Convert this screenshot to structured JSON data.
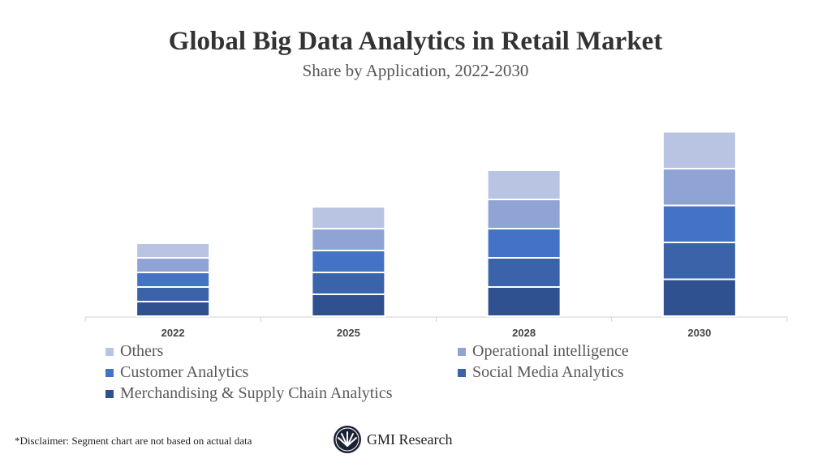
{
  "chart_data": {
    "type": "bar",
    "stacked": true,
    "title": "Global Big Data Analytics in Retail Market",
    "subtitle": "Share by Application, 2022-2030",
    "categories": [
      "2022",
      "2025",
      "2028",
      "2030"
    ],
    "series": [
      {
        "name": "Merchandising & Supply Chain Analytics",
        "color": "#2f5190",
        "values": [
          18,
          27,
          36,
          45.5
        ]
      },
      {
        "name": "Social Media Analytics",
        "color": "#3a63a9",
        "values": [
          18,
          27,
          36,
          45.5
        ]
      },
      {
        "name": "Customer Analytics",
        "color": "#4472c4",
        "values": [
          18,
          27,
          36,
          45.5
        ]
      },
      {
        "name": "Operational intelligence",
        "color": "#8fa4d4",
        "values": [
          18,
          27,
          36,
          45.5
        ]
      },
      {
        "name": "Others",
        "color": "#b9c4e3",
        "values": [
          18,
          27,
          36,
          45.5
        ]
      }
    ],
    "ylim": [
      0,
      228
    ],
    "y_axis_visible": false,
    "grid": false,
    "legend_placement": "bottom"
  },
  "footer": {
    "disclaimer": "*Disclaimer:  Segment chart are not based on actual data",
    "logo_text": "GMI Research"
  }
}
